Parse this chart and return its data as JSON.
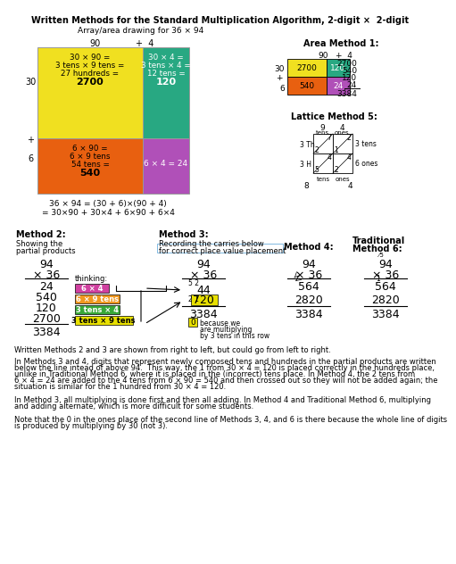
{
  "title": "Written Methods for the Standard Multiplication Algorithm, 2-digit ×  2-digit",
  "subtitle": "Array/area drawing for 36 × 94",
  "bg_color": "#ffffff",
  "yellow": "#f0e020",
  "green_teal": "#28a882",
  "orange": "#e86010",
  "purple": "#b050b8",
  "pink_box": "#d040a0",
  "orange_box": "#f09820",
  "green_box": "#38a838",
  "yellow_box": "#e8e000",
  "light_blue": "#80b8e0",
  "text_p1": "Written Methods 2 and 3 are shown from right to left, but could go from left to right.",
  "text_p2a": "In Methods 3 and 4, digits that represent newly composed tens and hundreds in the partial products are written",
  "text_p2b": "below the line intead of above 94.  This way, the 1 from 30 × 4 = 120 is placed correctly in the hundreds place,",
  "text_p2c": "unlike in Traditional Method 6, where it is placed in the (incorrect) tens place. In Method 4, the 2 tens from",
  "text_p2d": "6 × 4 = 24 are added to the 4 tens from 6 × 90 = 540 and then crossed out so they will not be added again; the",
  "text_p2e": "situation is similar for the 1 hundred from 30 × 4 = 120.",
  "text_p3a": "In Method 3, all multiplying is done first and then all adding. In Method 4 and Traditional Method 6, multiplying",
  "text_p3b": "and adding alternate, which is more difficult for some students.",
  "text_p4a": "Note that the 0 in the ones place of the second line of Methods 3, 4, and 6 is there because the whole line of digits",
  "text_p4b": "is produced by multiplying by 30 (not 3)."
}
